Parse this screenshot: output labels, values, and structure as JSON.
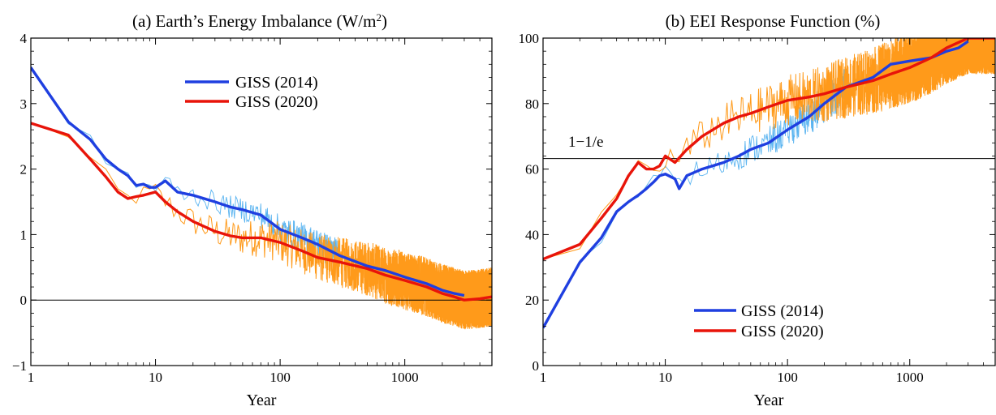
{
  "chart_data": [
    {
      "type": "line",
      "title": "(a) Earth’s Energy Imbalance (W/m2)",
      "title_main": "(a) Earth’s Energy Imbalance (W/m",
      "title_sup": "2",
      "title_end": ")",
      "xlabel": "Year",
      "ylabel": "",
      "xscale": "log",
      "xlim": [
        1,
        5000
      ],
      "ylim": [
        -1,
        4
      ],
      "xticks": [
        1,
        10,
        100,
        1000
      ],
      "xtick_labels": [
        "1",
        "10",
        "100",
        "1000"
      ],
      "yticks": [
        -1,
        0,
        1,
        2,
        3,
        4
      ],
      "ytick_labels": [
        "−1",
        "0",
        "1",
        "2",
        "3",
        "4"
      ],
      "reference_line": 0,
      "legend_position": "top-center",
      "series": [
        {
          "name": "GISS (2014)",
          "color": "#1f3fe0",
          "x": [
            1,
            2,
            3,
            4,
            5,
            6,
            7,
            8,
            9,
            10,
            12,
            15,
            20,
            30,
            40,
            50,
            70,
            100,
            150,
            200,
            300,
            500,
            700,
            1000,
            1500,
            2000,
            2500,
            3000
          ],
          "y": [
            3.55,
            2.72,
            2.45,
            2.15,
            2.0,
            1.9,
            1.75,
            1.77,
            1.72,
            1.72,
            1.82,
            1.65,
            1.6,
            1.5,
            1.42,
            1.38,
            1.3,
            1.08,
            0.95,
            0.85,
            0.68,
            0.52,
            0.45,
            0.35,
            0.25,
            0.15,
            0.1,
            0.07
          ]
        },
        {
          "name": "GISS (2020)",
          "color": "#e8140a",
          "x": [
            1,
            2,
            3,
            4,
            5,
            6,
            7,
            8,
            10,
            12,
            15,
            20,
            30,
            40,
            50,
            70,
            100,
            150,
            200,
            300,
            500,
            700,
            1000,
            1500,
            2000,
            2500,
            3000,
            4000,
            5000
          ],
          "y": [
            2.7,
            2.52,
            2.15,
            1.88,
            1.65,
            1.55,
            1.58,
            1.6,
            1.65,
            1.5,
            1.35,
            1.2,
            1.05,
            0.98,
            0.95,
            0.95,
            0.88,
            0.75,
            0.65,
            0.58,
            0.48,
            0.38,
            0.3,
            0.2,
            0.1,
            0.05,
            0.0,
            0.02,
            0.05
          ]
        }
      ]
    },
    {
      "type": "line",
      "title": "(b) EEI Response Function (%)",
      "xlabel": "Year",
      "ylabel": "",
      "xscale": "log",
      "xlim": [
        1,
        5000
      ],
      "ylim": [
        0,
        100
      ],
      "xticks": [
        1,
        10,
        100,
        1000
      ],
      "xtick_labels": [
        "1",
        "10",
        "100",
        "1000"
      ],
      "yticks": [
        0,
        20,
        40,
        60,
        80,
        100
      ],
      "ytick_labels": [
        "0",
        "20",
        "40",
        "60",
        "80",
        "100"
      ],
      "reference_line": 63.2,
      "reference_label": "1−1/e",
      "legend_position": "bottom-center",
      "series": [
        {
          "name": "GISS (2014)",
          "color": "#1f3fe0",
          "x": [
            1,
            2,
            3,
            4,
            5,
            6,
            7,
            8,
            9,
            10,
            12,
            13,
            15,
            20,
            30,
            40,
            50,
            70,
            100,
            150,
            200,
            300,
            500,
            700,
            1000,
            1500,
            2000,
            2500,
            3000
          ],
          "y": [
            11.5,
            31.5,
            39,
            47,
            50,
            52,
            54,
            56,
            58,
            58.5,
            57,
            54,
            58,
            60,
            62,
            64,
            66,
            68,
            72,
            76,
            80,
            85,
            88,
            92,
            93,
            94,
            96,
            97,
            99
          ]
        },
        {
          "name": "GISS (2020)",
          "color": "#e8140a",
          "x": [
            1,
            2,
            3,
            4,
            5,
            6,
            7,
            8,
            9,
            10,
            12,
            15,
            20,
            30,
            40,
            50,
            70,
            100,
            150,
            200,
            300,
            500,
            700,
            1000,
            1500,
            2000,
            3000,
            4000,
            5000
          ],
          "y": [
            32.5,
            37,
            45,
            51,
            58,
            62,
            60,
            60,
            61,
            64,
            62,
            66,
            70,
            74,
            76,
            77,
            79,
            81,
            82,
            83,
            85,
            87,
            89,
            91,
            94,
            97,
            100,
            100,
            100
          ]
        }
      ]
    }
  ]
}
